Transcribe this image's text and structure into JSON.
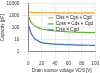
{
  "chart_data": {
    "type": "line",
    "x_label": "Drain source voltage VDS [V]",
    "y_label": "Capacity [pF]",
    "log": "y",
    "grid": true,
    "legend": "upper right",
    "xlim": [
      0,
      100
    ],
    "xticks": [
      0,
      20,
      40,
      60,
      80,
      100
    ],
    "ylim": [
      1,
      10000
    ],
    "yticks": [
      1,
      10,
      100,
      1000,
      10000
    ],
    "x": [
      0,
      2,
      5,
      10,
      15,
      20,
      30,
      40,
      50,
      60,
      70,
      80,
      90,
      100
    ],
    "series": [
      {
        "name": "Ciss = Cgs + Cgd",
        "color": "#f5a623",
        "values": [
          2200,
          2000,
          1900,
          1850,
          1820,
          1800,
          1790,
          1780,
          1770,
          1760,
          1750,
          1750,
          1740,
          1740
        ]
      },
      {
        "name": "Coss = Cds + Cgd",
        "color": "#5cb82e",
        "values": [
          900,
          500,
          250,
          140,
          100,
          80,
          65,
          55,
          50,
          47,
          44,
          42,
          41,
          40
        ]
      },
      {
        "name": "Crss = Cgd",
        "color": "#3a6fc4",
        "values": [
          200,
          80,
          30,
          12,
          8,
          6,
          5,
          4.5,
          4.2,
          4,
          3.8,
          3.7,
          3.6,
          3.5
        ]
      }
    ]
  }
}
